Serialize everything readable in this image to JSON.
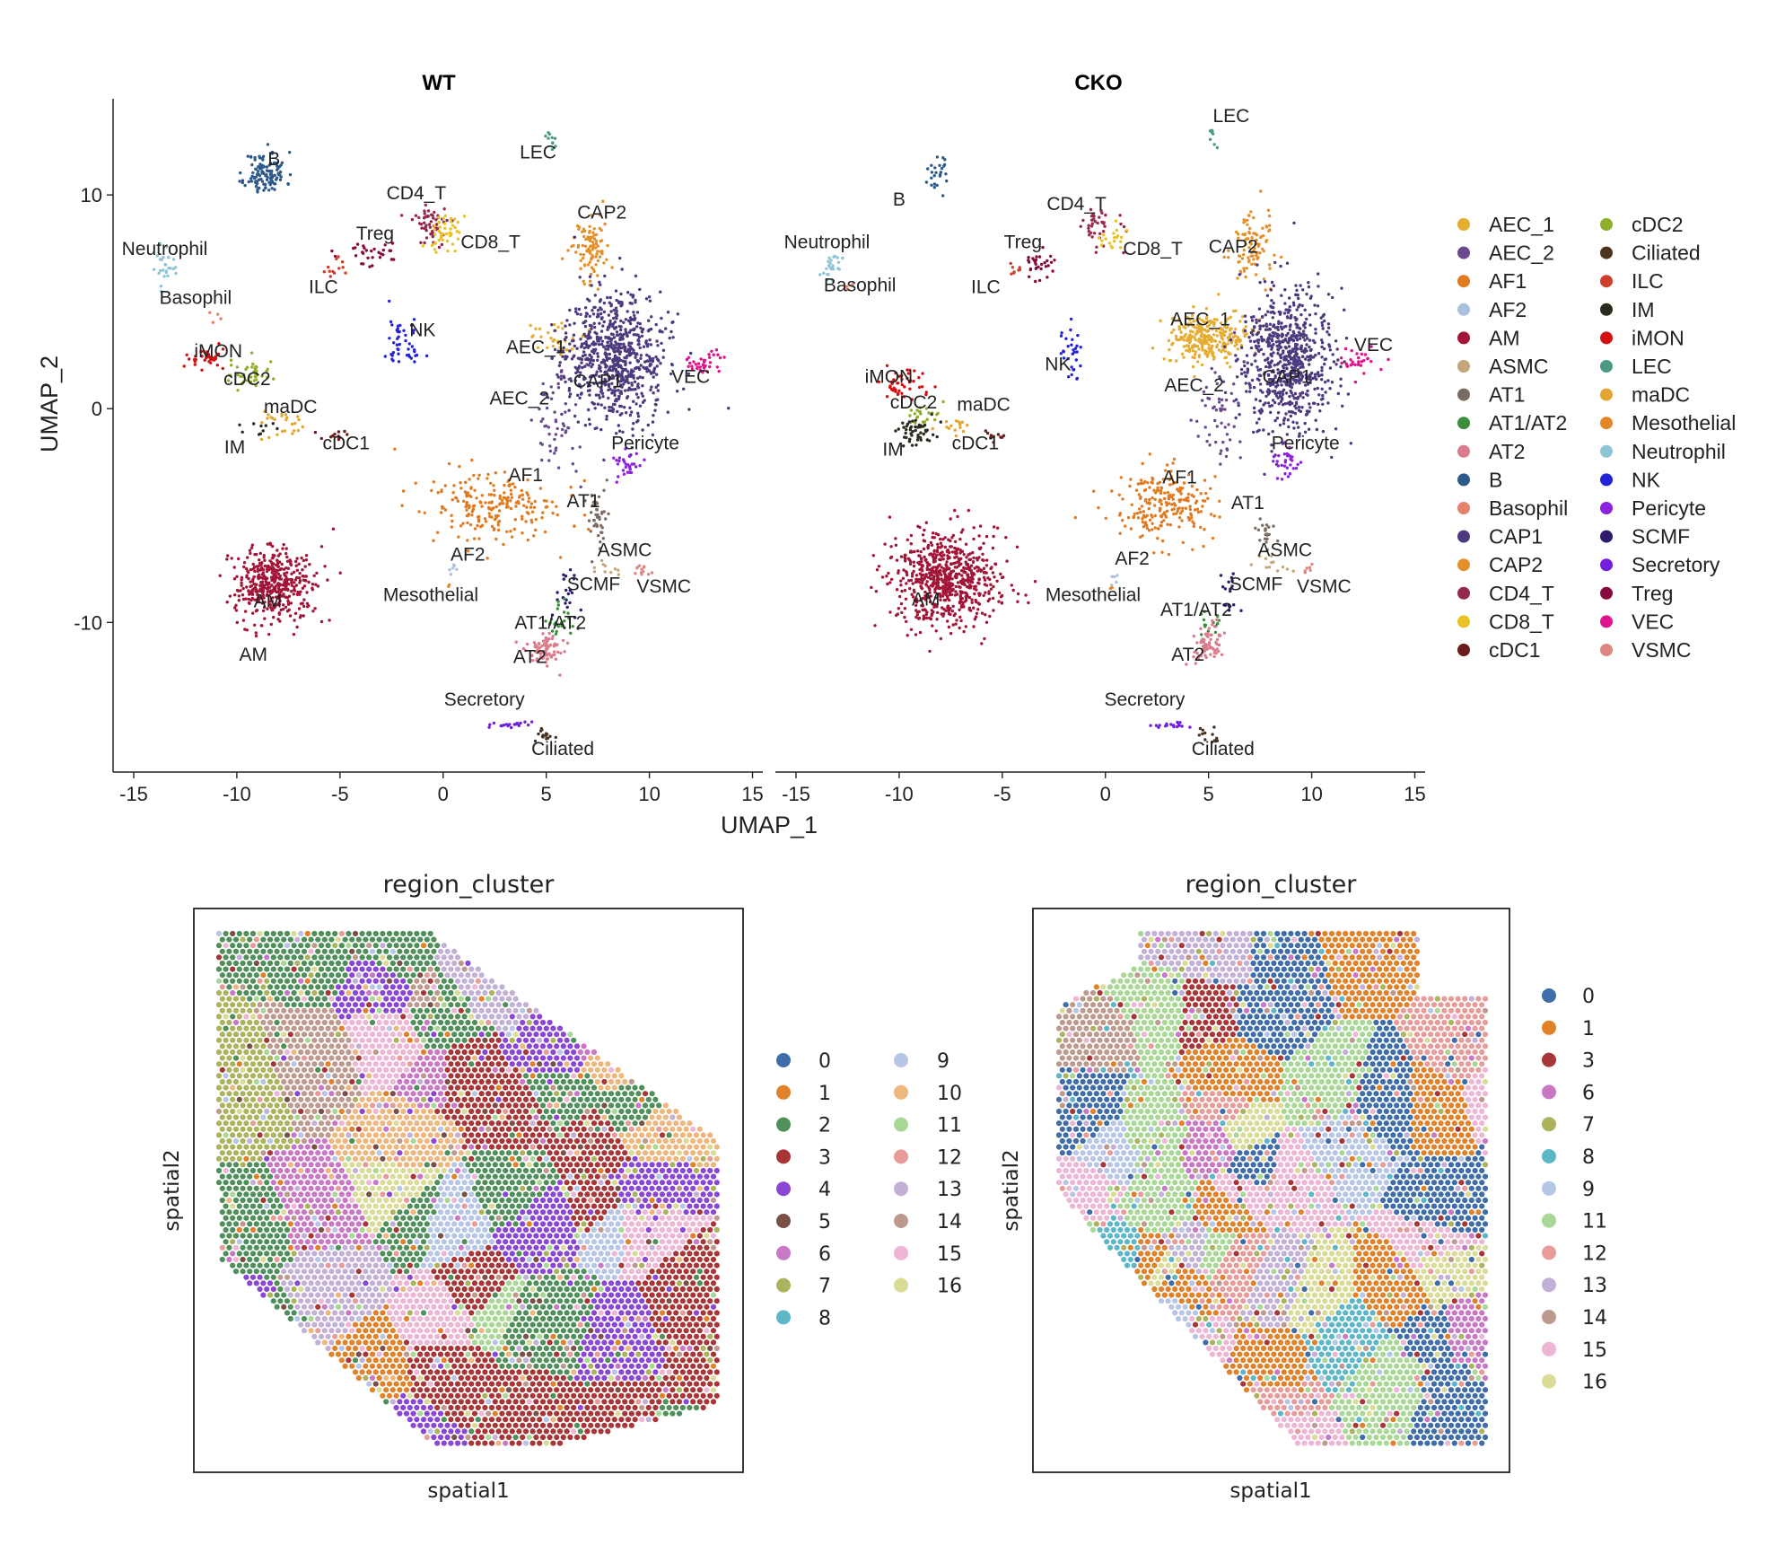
{
  "chart_data": [
    {
      "type": "scatter",
      "title": "WT",
      "xlabel": "UMAP_1",
      "ylabel": "UMAP_2",
      "xlim": [
        -16,
        15.5
      ],
      "ylim": [
        -17,
        14.5
      ],
      "xticks": [
        "-15",
        "-10",
        "-5",
        "0",
        "5",
        "10",
        "15"
      ],
      "yticks": [
        "10",
        "0",
        "-10"
      ],
      "clusters": [
        {
          "name": "B",
          "x": -8.6,
          "y": 11.0,
          "sx": 0.5,
          "sy": 0.5,
          "n": 120,
          "lx": -8.2,
          "ly": 11.4
        },
        {
          "name": "LEC",
          "x": 5.2,
          "y": 12.6,
          "sx": 0.1,
          "sy": 0.3,
          "n": 10,
          "lx": 4.6,
          "ly": 11.7
        },
        {
          "name": "CD4_T",
          "x": -0.6,
          "y": 8.6,
          "sx": 0.5,
          "sy": 0.5,
          "n": 55,
          "lx": -1.3,
          "ly": 9.8
        },
        {
          "name": "CD8_T",
          "x": 0.1,
          "y": 8.3,
          "sx": 0.4,
          "sy": 0.4,
          "n": 45,
          "lx": 2.3,
          "ly": 7.5
        },
        {
          "name": "Treg",
          "x": -3.6,
          "y": 7.3,
          "sx": 0.9,
          "sy": 0.3,
          "n": 30,
          "lx": -3.3,
          "ly": 7.9
        },
        {
          "name": "ILC",
          "x": -5.1,
          "y": 6.6,
          "sx": 0.3,
          "sy": 0.3,
          "n": 12,
          "lx": -5.8,
          "ly": 5.4
        },
        {
          "name": "Neutrophil",
          "x": -13.5,
          "y": 6.7,
          "sx": 0.25,
          "sy": 0.4,
          "n": 25,
          "lx": -13.5,
          "ly": 7.2
        },
        {
          "name": "Basophil",
          "x": -11.0,
          "y": 4.2,
          "sx": 0.2,
          "sy": 0.2,
          "n": 4,
          "lx": -12.0,
          "ly": 4.9
        },
        {
          "name": "NK",
          "x": -1.9,
          "y": 3.0,
          "sx": 0.4,
          "sy": 0.7,
          "n": 45,
          "lx": -1.0,
          "ly": 3.4
        },
        {
          "name": "CAP2",
          "x": 7.1,
          "y": 7.6,
          "sx": 0.5,
          "sy": 0.8,
          "n": 95,
          "lx": 7.7,
          "ly": 8.9
        },
        {
          "name": "AEC_1",
          "x": 5.4,
          "y": 3.4,
          "sx": 0.6,
          "sy": 0.4,
          "n": 35,
          "lx": 4.5,
          "ly": 2.6
        },
        {
          "name": "CAP1",
          "x": 8.3,
          "y": 2.4,
          "sx": 1.2,
          "sy": 1.5,
          "n": 750,
          "lx": 7.5,
          "ly": 1.0
        },
        {
          "name": "AEC_2",
          "x": 5.6,
          "y": -0.7,
          "sx": 0.5,
          "sy": 1.3,
          "n": 55,
          "lx": 3.7,
          "ly": 0.2
        },
        {
          "name": "VEC",
          "x": 12.5,
          "y": 2.2,
          "sx": 0.5,
          "sy": 0.3,
          "n": 35,
          "lx": 12.0,
          "ly": 1.2
        },
        {
          "name": "Pericyte",
          "x": 8.9,
          "y": -2.7,
          "sx": 0.35,
          "sy": 0.35,
          "n": 30,
          "lx": 9.8,
          "ly": -1.9
        },
        {
          "name": "AF1",
          "x": 2.6,
          "y": -4.6,
          "sx": 1.6,
          "sy": 0.8,
          "n": 220,
          "lx": 4.0,
          "ly": -3.4
        },
        {
          "name": "AT1",
          "x": 7.5,
          "y": -5.2,
          "sx": 0.25,
          "sy": 0.7,
          "n": 40,
          "lx": 6.8,
          "ly": -4.6
        },
        {
          "name": "AF2",
          "x": 0.3,
          "y": -7.5,
          "sx": 0.15,
          "sy": 0.3,
          "n": 6,
          "lx": 1.2,
          "ly": -7.1
        },
        {
          "name": "ASMC",
          "x": 7.7,
          "y": -7.5,
          "sx": 0.4,
          "sy": 0.2,
          "n": 10,
          "lx": 8.8,
          "ly": -6.9
        },
        {
          "name": "VSMC",
          "x": 9.8,
          "y": -7.5,
          "sx": 0.3,
          "sy": 0.2,
          "n": 12,
          "lx": 10.7,
          "ly": -8.6
        },
        {
          "name": "SCMF",
          "x": 6.1,
          "y": -8.6,
          "sx": 0.3,
          "sy": 0.6,
          "n": 20,
          "lx": 7.3,
          "ly": -8.5
        },
        {
          "name": "Mesothelial",
          "x": 0.2,
          "y": -8.4,
          "sx": 0.1,
          "sy": 0.1,
          "n": 2,
          "lx": -0.6,
          "ly": -9.0
        },
        {
          "name": "AT1/AT2",
          "x": 5.6,
          "y": -10.0,
          "sx": 0.4,
          "sy": 0.4,
          "n": 25,
          "lx": 5.2,
          "ly": -10.3
        },
        {
          "name": "AT2",
          "x": 4.9,
          "y": -11.3,
          "sx": 0.5,
          "sy": 0.4,
          "n": 80,
          "lx": 4.2,
          "ly": -11.9
        },
        {
          "name": "iMON",
          "x": -11.4,
          "y": 2.3,
          "sx": 0.5,
          "sy": 0.25,
          "n": 35,
          "lx": -10.9,
          "ly": 2.4
        },
        {
          "name": "cDC2",
          "x": -9.4,
          "y": 1.6,
          "sx": 0.6,
          "sy": 0.3,
          "n": 40,
          "lx": -9.5,
          "ly": 1.1
        },
        {
          "name": "maDC",
          "x": -7.6,
          "y": -0.7,
          "sx": 0.6,
          "sy": 0.3,
          "n": 25,
          "lx": -7.4,
          "ly": -0.2
        },
        {
          "name": "IM",
          "x": -8.8,
          "y": -1.0,
          "sx": 0.4,
          "sy": 0.2,
          "n": 10,
          "lx": -10.1,
          "ly": -2.1
        },
        {
          "name": "cDC1",
          "x": -5.4,
          "y": -1.2,
          "sx": 0.6,
          "sy": 0.15,
          "n": 12,
          "lx": -4.7,
          "ly": -1.9
        },
        {
          "name": "Ciliated",
          "x": 4.9,
          "y": -15.3,
          "sx": 0.3,
          "sy": 0.2,
          "n": 15,
          "lx": 5.8,
          "ly": -16.2
        },
        {
          "name": "Secretory",
          "x": 3.2,
          "y": -14.8,
          "sx": 0.6,
          "sy": 0.1,
          "n": 20,
          "lx": 2.0,
          "ly": -13.9
        },
        {
          "name": "AM",
          "x": -8.2,
          "y": -8.2,
          "sx": 1.0,
          "sy": 0.9,
          "n": 430,
          "lx": -8.5,
          "ly": -9.3
        },
        {
          "name": "AM",
          "x": -8.6,
          "y": -12.8,
          "sx": 0.0,
          "sy": 0.0,
          "n": 0,
          "lx": -9.2,
          "ly": -11.8
        }
      ]
    },
    {
      "type": "scatter",
      "title": "CKO",
      "xlabel": "UMAP_1",
      "ylabel": "UMAP_2",
      "xlim": [
        -16,
        15.5
      ],
      "ylim": [
        -17,
        14.5
      ],
      "xticks": [
        "-15",
        "-10",
        "-5",
        "0",
        "5",
        "10",
        "15"
      ],
      "clusters": [
        {
          "name": "B",
          "x": -8.3,
          "y": 11.0,
          "sx": 0.4,
          "sy": 0.4,
          "n": 25,
          "lx": -10.0,
          "ly": 9.5
        },
        {
          "name": "LEC",
          "x": 5.2,
          "y": 12.6,
          "sx": 0.1,
          "sy": 0.3,
          "n": 8,
          "lx": 6.1,
          "ly": 13.4
        },
        {
          "name": "CD4_T",
          "x": -0.3,
          "y": 8.6,
          "sx": 0.5,
          "sy": 0.5,
          "n": 40,
          "lx": -1.4,
          "ly": 9.3
        },
        {
          "name": "CD8_T",
          "x": 0.3,
          "y": 8.0,
          "sx": 0.3,
          "sy": 0.3,
          "n": 20,
          "lx": 2.3,
          "ly": 7.2
        },
        {
          "name": "Treg",
          "x": -3.3,
          "y": 6.7,
          "sx": 0.4,
          "sy": 0.4,
          "n": 30,
          "lx": -4.0,
          "ly": 7.5
        },
        {
          "name": "ILC",
          "x": -4.5,
          "y": 6.5,
          "sx": 0.2,
          "sy": 0.2,
          "n": 8,
          "lx": -5.8,
          "ly": 5.4
        },
        {
          "name": "Neutrophil",
          "x": -13.4,
          "y": 6.7,
          "sx": 0.25,
          "sy": 0.4,
          "n": 25,
          "lx": -13.5,
          "ly": 7.5
        },
        {
          "name": "Basophil",
          "x": -12.5,
          "y": 5.8,
          "sx": 0.2,
          "sy": 0.2,
          "n": 3,
          "lx": -11.9,
          "ly": 5.5
        },
        {
          "name": "NK",
          "x": -1.7,
          "y": 2.7,
          "sx": 0.3,
          "sy": 0.6,
          "n": 30,
          "lx": -2.3,
          "ly": 1.8
        },
        {
          "name": "CAP2",
          "x": 7.1,
          "y": 7.6,
          "sx": 0.5,
          "sy": 0.8,
          "n": 95,
          "lx": 6.2,
          "ly": 7.3
        },
        {
          "name": "AEC_1",
          "x": 5.0,
          "y": 3.3,
          "sx": 1.0,
          "sy": 0.6,
          "n": 280,
          "lx": 4.6,
          "ly": 3.9
        },
        {
          "name": "CAP1",
          "x": 8.8,
          "y": 2.2,
          "sx": 1.1,
          "sy": 1.6,
          "n": 700,
          "lx": 8.8,
          "ly": 1.2
        },
        {
          "name": "AEC_2",
          "x": 5.6,
          "y": -0.5,
          "sx": 0.5,
          "sy": 1.3,
          "n": 55,
          "lx": 4.3,
          "ly": 0.8
        },
        {
          "name": "VEC",
          "x": 12.3,
          "y": 2.2,
          "sx": 0.6,
          "sy": 0.3,
          "n": 30,
          "lx": 13.0,
          "ly": 2.7
        },
        {
          "name": "Pericyte",
          "x": 8.8,
          "y": -2.5,
          "sx": 0.3,
          "sy": 0.4,
          "n": 30,
          "lx": 9.7,
          "ly": -1.9
        },
        {
          "name": "AF1",
          "x": 2.8,
          "y": -4.5,
          "sx": 1.3,
          "sy": 0.9,
          "n": 220,
          "lx": 3.6,
          "ly": -3.5
        },
        {
          "name": "AT1",
          "x": 7.7,
          "y": -5.6,
          "sx": 0.2,
          "sy": 0.5,
          "n": 20,
          "lx": 6.9,
          "ly": -4.7
        },
        {
          "name": "AF2",
          "x": 0.4,
          "y": -8.0,
          "sx": 0.1,
          "sy": 0.25,
          "n": 5,
          "lx": 1.3,
          "ly": -7.3
        },
        {
          "name": "ASMC",
          "x": 8.3,
          "y": -7.2,
          "sx": 0.4,
          "sy": 0.25,
          "n": 12,
          "lx": 8.7,
          "ly": -6.9
        },
        {
          "name": "VSMC",
          "x": 9.7,
          "y": -7.6,
          "sx": 0.2,
          "sy": 0.2,
          "n": 6,
          "lx": 10.6,
          "ly": -8.6
        },
        {
          "name": "SCMF",
          "x": 6.0,
          "y": -8.6,
          "sx": 0.3,
          "sy": 0.6,
          "n": 18,
          "lx": 7.3,
          "ly": -8.5
        },
        {
          "name": "Mesothelial",
          "x": 0.2,
          "y": -8.4,
          "sx": 0.1,
          "sy": 0.1,
          "n": 2,
          "lx": -0.6,
          "ly": -9.0
        },
        {
          "name": "AT1/AT2",
          "x": 5.0,
          "y": -10.0,
          "sx": 0.3,
          "sy": 0.4,
          "n": 15,
          "lx": 4.4,
          "ly": -9.7
        },
        {
          "name": "AT2",
          "x": 5.0,
          "y": -11.0,
          "sx": 0.4,
          "sy": 0.4,
          "n": 70,
          "lx": 4.0,
          "ly": -11.8
        },
        {
          "name": "iMON",
          "x": -9.8,
          "y": 1.2,
          "sx": 0.6,
          "sy": 0.5,
          "n": 45,
          "lx": -10.5,
          "ly": 1.2
        },
        {
          "name": "cDC2",
          "x": -8.9,
          "y": -0.3,
          "sx": 0.5,
          "sy": 0.3,
          "n": 25,
          "lx": -9.3,
          "ly": 0.0
        },
        {
          "name": "maDC",
          "x": -7.1,
          "y": -0.8,
          "sx": 0.4,
          "sy": 0.2,
          "n": 15,
          "lx": -5.9,
          "ly": -0.1
        },
        {
          "name": "IM",
          "x": -9.3,
          "y": -1.1,
          "sx": 0.5,
          "sy": 0.3,
          "n": 50,
          "lx": -10.3,
          "ly": -2.2
        },
        {
          "name": "cDC1",
          "x": -5.3,
          "y": -1.2,
          "sx": 0.4,
          "sy": 0.15,
          "n": 10,
          "lx": -6.3,
          "ly": -1.9
        },
        {
          "name": "Ciliated",
          "x": 5.0,
          "y": -15.3,
          "sx": 0.3,
          "sy": 0.2,
          "n": 12,
          "lx": 5.7,
          "ly": -16.2
        },
        {
          "name": "Secretory",
          "x": 3.2,
          "y": -14.8,
          "sx": 0.6,
          "sy": 0.1,
          "n": 18,
          "lx": 1.9,
          "ly": -13.9
        },
        {
          "name": "AM",
          "x": -7.8,
          "y": -8.0,
          "sx": 1.3,
          "sy": 1.1,
          "n": 700,
          "lx": -8.7,
          "ly": -9.2
        }
      ]
    },
    {
      "type": "scatter",
      "title": "region_cluster",
      "xlabel": "spatial1",
      "ylabel": "spatial2",
      "legend": [
        "0",
        "1",
        "2",
        "3",
        "4",
        "5",
        "6",
        "7",
        "8",
        "9",
        "10",
        "11",
        "12",
        "13",
        "14",
        "15",
        "16"
      ]
    },
    {
      "type": "scatter",
      "title": "region_cluster",
      "xlabel": "spatial1",
      "ylabel": "spatial2",
      "legend": [
        "0",
        "1",
        "3",
        "6",
        "7",
        "8",
        "9",
        "11",
        "12",
        "13",
        "14",
        "15",
        "16"
      ]
    }
  ],
  "umap_colors": {
    "AEC_1": "#E5AE33",
    "AEC_2": "#6A4A8C",
    "AF1": "#E07B22",
    "AF2": "#A9C1DE",
    "AM": "#A31537",
    "ASMC": "#C4A777",
    "AT1": "#7C6B62",
    "AT1/AT2": "#3C8D3C",
    "AT2": "#DB7C8C",
    "B": "#2E5A8A",
    "Basophil": "#E4826C",
    "CAP1": "#4E3A7E",
    "CAP2": "#E3902B",
    "CD4_T": "#962A4E",
    "CD8_T": "#E9C228",
    "cDC1": "#6A1D1D",
    "cDC2": "#8FAE2A",
    "Ciliated": "#4A3420",
    "ILC": "#CE3E2C",
    "IM": "#2B2B20",
    "iMON": "#D41010",
    "LEC": "#4B9A86",
    "maDC": "#E3A632",
    "Mesothelial": "#E48628",
    "Neutrophil": "#8FC3D6",
    "NK": "#2424D6",
    "Pericyte": "#8C22DE",
    "SCMF": "#2E1A6E",
    "Secretory": "#7320DE",
    "Treg": "#870A3C",
    "VEC": "#E0148A",
    "VSMC": "#DC8780"
  },
  "umap_legend_col1": [
    "AEC_1",
    "AEC_2",
    "AF1",
    "AF2",
    "AM",
    "ASMC",
    "AT1",
    "AT1/AT2",
    "AT2",
    "B",
    "Basophil",
    "CAP1",
    "CAP2",
    "CD4_T",
    "CD8_T",
    "cDC1"
  ],
  "umap_legend_col2": [
    "cDC2",
    "Ciliated",
    "ILC",
    "IM",
    "iMON",
    "LEC",
    "maDC",
    "Mesothelial",
    "Neutrophil",
    "NK",
    "Pericyte",
    "SCMF",
    "Secretory",
    "Treg",
    "VEC",
    "VSMC"
  ],
  "region_colors": {
    "0": "#3E6DA9",
    "1": "#E0822A",
    "2": "#4E8F5A",
    "3": "#A93636",
    "4": "#8B46D6",
    "5": "#7A5046",
    "6": "#C978C6",
    "7": "#ABB35C",
    "8": "#5EB7C9",
    "9": "#B7C6E6",
    "10": "#EDB77E",
    "11": "#A9D796",
    "12": "#E79C9A",
    "13": "#C2B0D6",
    "14": "#BE9A8E",
    "15": "#EDB6D4",
    "16": "#DBDB98"
  },
  "wt_region_legend_col1": [
    "0",
    "1",
    "2",
    "3",
    "4",
    "5",
    "6",
    "7",
    "8"
  ],
  "wt_region_legend_col2": [
    "9",
    "10",
    "11",
    "12",
    "13",
    "14",
    "15",
    "16"
  ],
  "cko_region_legend": [
    "0",
    "1",
    "3",
    "6",
    "7",
    "8",
    "9",
    "11",
    "12",
    "13",
    "14",
    "15",
    "16"
  ]
}
